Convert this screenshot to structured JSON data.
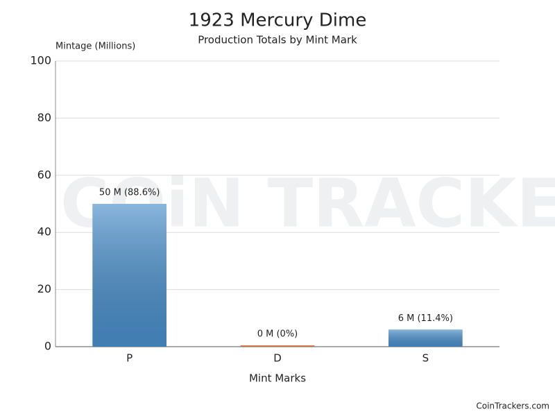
{
  "chart_data": {
    "type": "bar",
    "title": "1923 Mercury Dime",
    "subtitle": "Production Totals by Mint Mark",
    "y_label": "Mintage (Millions)",
    "x_label": "Mint Marks",
    "categories": [
      "P",
      "D",
      "S"
    ],
    "values": [
      50,
      0,
      6
    ],
    "value_labels": [
      "50 M (88.6%)",
      "0 M (0%)",
      "6 M (11.4%)"
    ],
    "colors": [
      "#4a8fcb",
      "#e8743b",
      "#4a8fcb"
    ],
    "ylim": [
      0,
      100
    ],
    "yticks": [
      0,
      20,
      40,
      60,
      80,
      100
    ],
    "grid": true,
    "watermark": "COiN TRACKERS",
    "footer": "CoinTrackers.com"
  }
}
